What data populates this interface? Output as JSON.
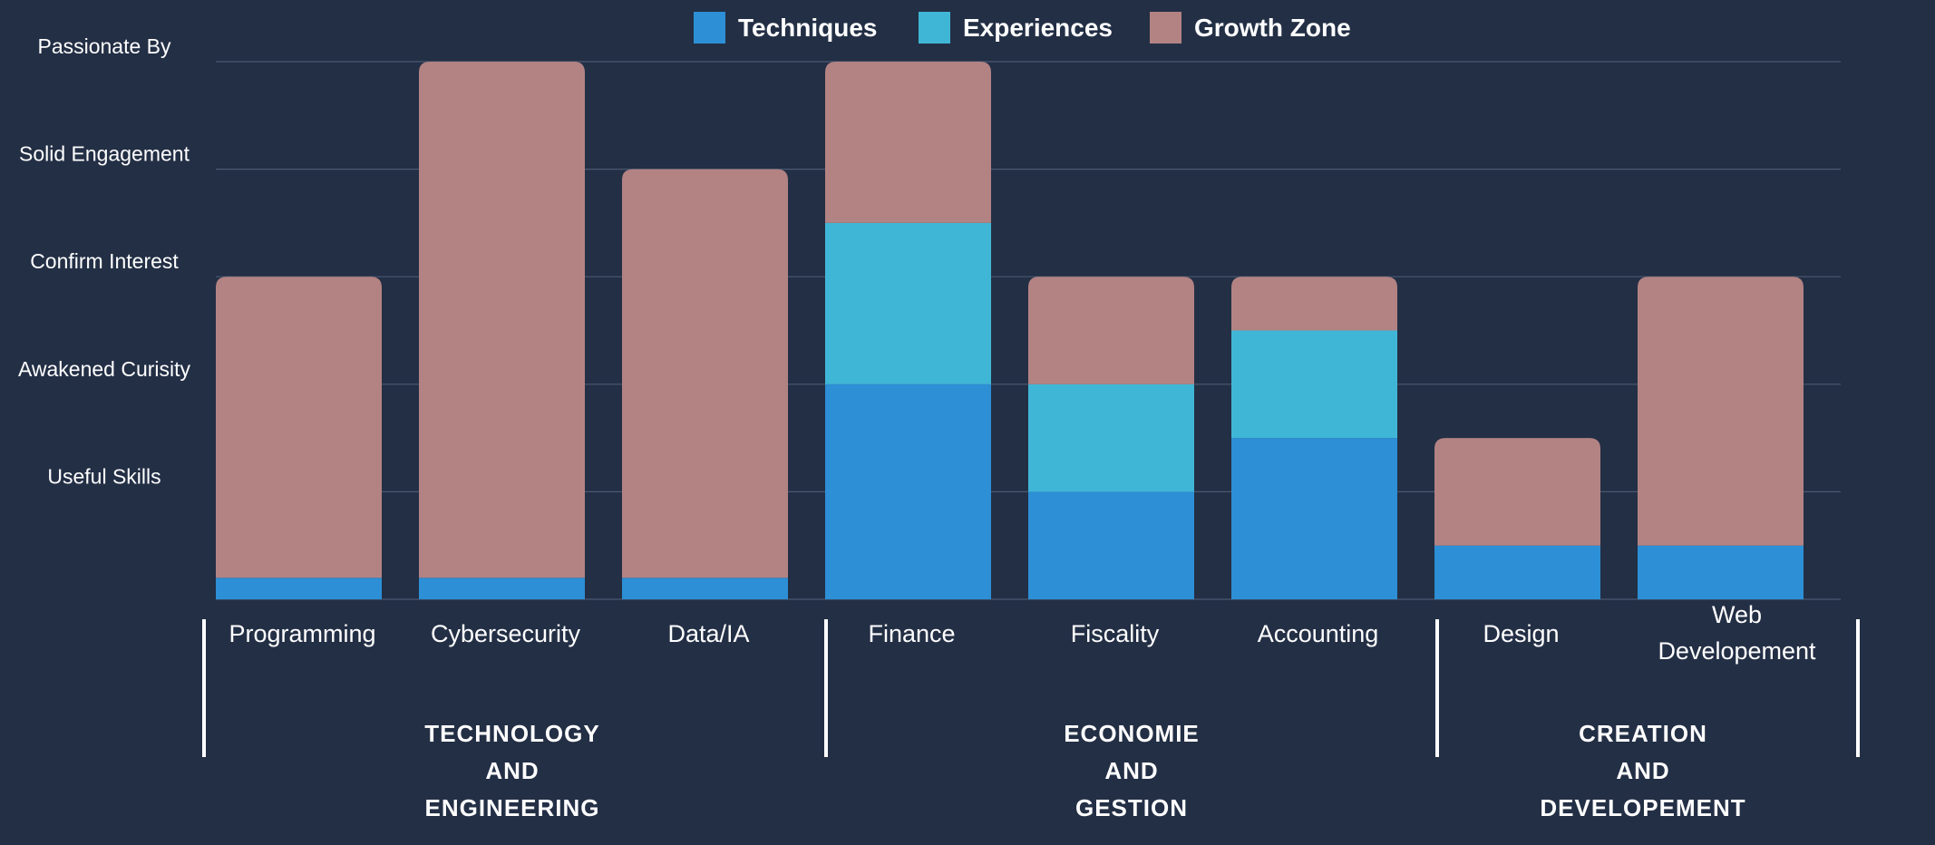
{
  "chart_data": {
    "type": "bar",
    "stacked": true,
    "categories": [
      "Programming",
      "Cybersecurity",
      "Data/IA",
      "Finance",
      "Fiscality",
      "Accounting",
      "Design",
      "Web Developement"
    ],
    "y_tick_labels": [
      "Useful Skills",
      "Awakened Curisity",
      "Confirm Interest",
      "Solid Engagement",
      "Passionate By"
    ],
    "ylim": [
      0,
      5
    ],
    "grid": true,
    "legend_position": "top-center",
    "series": [
      {
        "name": "Techniques",
        "color": "#2d8fd5",
        "values": [
          0.2,
          0.2,
          0.2,
          2.0,
          1.0,
          1.5,
          0.5,
          0.5
        ]
      },
      {
        "name": "Experiences",
        "color": "#40b6d6",
        "values": [
          0,
          0,
          0,
          1.5,
          1.0,
          1.0,
          0,
          0
        ]
      },
      {
        "name": "Growth Zone",
        "color": "#b38383",
        "values": [
          2.8,
          4.8,
          3.8,
          1.5,
          1.0,
          0.5,
          1.0,
          2.5
        ]
      }
    ],
    "groups": [
      {
        "label": "TECHNOLOGY\nAND\nENGINEERING",
        "categories": [
          "Programming",
          "Cybersecurity",
          "Data/IA"
        ]
      },
      {
        "label": "ECONOMIE\nAND\nGESTION",
        "categories": [
          "Finance",
          "Fiscality",
          "Accounting"
        ]
      },
      {
        "label": "CREATION\nAND\nDEVELOPEMENT",
        "categories": [
          "Design",
          "Web Developement"
        ]
      }
    ]
  }
}
